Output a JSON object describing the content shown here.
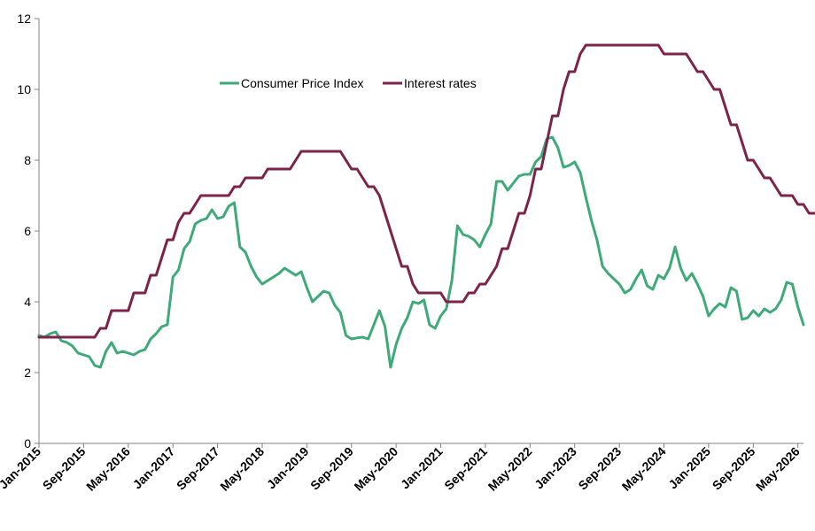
{
  "chart_data": {
    "type": "line",
    "title": "",
    "xlabel": "",
    "ylabel": "",
    "ylim": [
      0,
      12
    ],
    "yticks": [
      0,
      2,
      4,
      6,
      8,
      10,
      12
    ],
    "x_start": "Jan-2015",
    "x_tick_labels": [
      "Jan-2015",
      "Sep-2015",
      "May-2016",
      "Jan-2017",
      "Sep-2017",
      "May-2018",
      "Jan-2019",
      "Sep-2019",
      "May-2020",
      "Jan-2021",
      "Sep-2021",
      "May-2022",
      "Jan-2023",
      "Sep-2023",
      "May-2024",
      "Jan-2025",
      "Sep-2025",
      "May-2026"
    ],
    "x_tick_positions": [
      0,
      8,
      16,
      24,
      32,
      40,
      48,
      56,
      64,
      72,
      80,
      88,
      96,
      104,
      112,
      120,
      128,
      136
    ],
    "legend_position": "top-center",
    "grid": false,
    "series": [
      {
        "name": "Consumer Price Index",
        "color": "#3daa78",
        "values": [
          3.05,
          3.0,
          3.1,
          3.15,
          2.9,
          2.85,
          2.75,
          2.55,
          2.5,
          2.45,
          2.2,
          2.15,
          2.6,
          2.85,
          2.55,
          2.6,
          2.55,
          2.5,
          2.6,
          2.65,
          2.95,
          3.1,
          3.3,
          3.35,
          4.7,
          4.9,
          5.5,
          5.7,
          6.2,
          6.3,
          6.35,
          6.6,
          6.35,
          6.4,
          6.7,
          6.8,
          5.55,
          5.4,
          5.0,
          4.7,
          4.5,
          4.6,
          4.7,
          4.8,
          4.95,
          4.85,
          4.75,
          4.85,
          4.4,
          4.0,
          4.15,
          4.3,
          4.25,
          3.9,
          3.7,
          3.05,
          2.95,
          2.98,
          3.0,
          2.95,
          3.35,
          3.75,
          3.3,
          2.15,
          2.8,
          3.25,
          3.55,
          4.0,
          3.95,
          4.05,
          3.35,
          3.25,
          3.6,
          3.8,
          4.6,
          6.15,
          5.9,
          5.85,
          5.75,
          5.55,
          5.9,
          6.2,
          7.4,
          7.4,
          7.15,
          7.35,
          7.55,
          7.6,
          7.6,
          7.95,
          8.1,
          8.6,
          8.65,
          8.35,
          7.8,
          7.85,
          7.95,
          7.65,
          6.95,
          6.3,
          5.75,
          5.0,
          4.8,
          4.65,
          4.5,
          4.25,
          4.35,
          4.65,
          4.9,
          4.45,
          4.35,
          4.75,
          4.65,
          4.95,
          5.55,
          4.95,
          4.6,
          4.8,
          4.5,
          4.15,
          3.6,
          3.8,
          3.95,
          3.85,
          4.4,
          4.3,
          3.5,
          3.55,
          3.75,
          3.6,
          3.8,
          3.7,
          3.8,
          4.05,
          4.55,
          4.5,
          3.85,
          3.35
        ]
      },
      {
        "name": "Interest rates",
        "color": "#7d2248",
        "values": [
          3.0,
          3.0,
          3.0,
          3.0,
          3.0,
          3.0,
          3.0,
          3.0,
          3.0,
          3.0,
          3.0,
          3.25,
          3.25,
          3.75,
          3.75,
          3.75,
          3.75,
          4.25,
          4.25,
          4.25,
          4.75,
          4.75,
          5.25,
          5.75,
          5.75,
          6.25,
          6.5,
          6.5,
          6.75,
          7.0,
          7.0,
          7.0,
          7.0,
          7.0,
          7.0,
          7.25,
          7.25,
          7.5,
          7.5,
          7.5,
          7.5,
          7.75,
          7.75,
          7.75,
          7.75,
          7.75,
          8.0,
          8.25,
          8.25,
          8.25,
          8.25,
          8.25,
          8.25,
          8.25,
          8.25,
          8.0,
          7.75,
          7.75,
          7.5,
          7.25,
          7.25,
          7.0,
          6.5,
          6.0,
          5.5,
          5.0,
          5.0,
          4.5,
          4.25,
          4.25,
          4.25,
          4.25,
          4.25,
          4.0,
          4.0,
          4.0,
          4.0,
          4.25,
          4.25,
          4.5,
          4.5,
          4.75,
          5.0,
          5.5,
          5.5,
          6.0,
          6.5,
          6.5,
          7.0,
          7.75,
          7.75,
          8.5,
          9.25,
          9.25,
          10.0,
          10.5,
          10.5,
          11.0,
          11.25,
          11.25,
          11.25,
          11.25,
          11.25,
          11.25,
          11.25,
          11.25,
          11.25,
          11.25,
          11.25,
          11.25,
          11.25,
          11.25,
          11.0,
          11.0,
          11.0,
          11.0,
          11.0,
          10.75,
          10.5,
          10.5,
          10.25,
          10.0,
          10.0,
          9.5,
          9.0,
          9.0,
          8.5,
          8.0,
          8.0,
          7.75,
          7.5,
          7.5,
          7.25,
          7.0,
          7.0,
          7.0,
          6.75,
          6.75,
          6.5,
          6.5
        ]
      }
    ]
  }
}
